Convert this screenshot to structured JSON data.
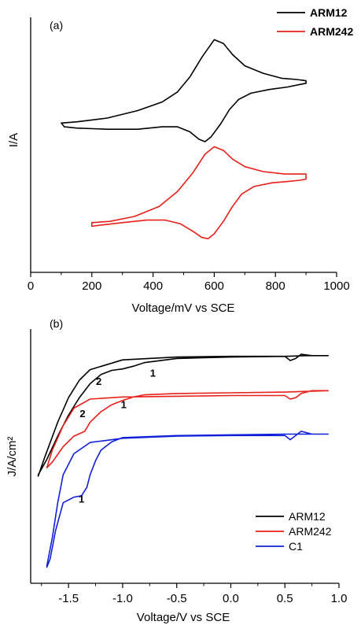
{
  "chart_data": [
    {
      "type": "line",
      "panel_label": "(a)",
      "xlabel": "Voltage/mV vs SCE",
      "ylabel": "I/A",
      "xlim": [
        0,
        1000
      ],
      "xticks": [
        "0",
        "200",
        "400",
        "600",
        "800",
        "1000"
      ],
      "legend": {
        "placement": "top-right",
        "style": "bold"
      },
      "series": [
        {
          "name": "ARM12",
          "color": "#000000",
          "x": [
            100,
            150,
            250,
            350,
            430,
            480,
            520,
            560,
            600,
            630,
            660,
            700,
            760,
            820,
            870,
            900,
            900,
            880,
            840,
            780,
            720,
            680,
            650,
            620,
            590,
            570,
            550,
            520,
            480,
            430,
            350,
            250,
            150,
            110,
            100
          ],
          "y": [
            0.45,
            0.46,
            0.49,
            0.55,
            0.62,
            0.7,
            0.82,
            0.98,
            1.12,
            1.09,
            1.0,
            0.91,
            0.85,
            0.81,
            0.8,
            0.79,
            0.77,
            0.76,
            0.74,
            0.72,
            0.69,
            0.64,
            0.56,
            0.44,
            0.34,
            0.3,
            0.32,
            0.38,
            0.42,
            0.42,
            0.4,
            0.4,
            0.41,
            0.42,
            0.45
          ]
        },
        {
          "name": "ARM242",
          "color": "#e8201a",
          "x": [
            200,
            260,
            340,
            420,
            480,
            530,
            570,
            600,
            630,
            660,
            700,
            760,
            830,
            880,
            900,
            900,
            880,
            840,
            790,
            730,
            690,
            660,
            630,
            600,
            580,
            560,
            530,
            490,
            440,
            380,
            300,
            230,
            200,
            200
          ],
          "y": [
            -0.35,
            -0.34,
            -0.3,
            -0.22,
            -0.1,
            0.05,
            0.2,
            0.26,
            0.23,
            0.16,
            0.1,
            0.06,
            0.04,
            0.04,
            0.04,
            0.0,
            -0.01,
            -0.02,
            -0.03,
            -0.06,
            -0.12,
            -0.22,
            -0.34,
            -0.44,
            -0.48,
            -0.47,
            -0.42,
            -0.36,
            -0.33,
            -0.33,
            -0.35,
            -0.37,
            -0.38,
            -0.35
          ]
        }
      ]
    },
    {
      "type": "line",
      "panel_label": "(b)",
      "xlabel": "Voltage/V vs SCE",
      "ylabel": "J/A/cm²",
      "xlim": [
        -1.85,
        1.0
      ],
      "xticks": [
        "-1.5",
        "-1.0",
        "-0.5",
        "0.0",
        "0.5",
        "1.0"
      ],
      "legend": {
        "placement": "bottom-right",
        "style": "normal"
      },
      "annotations": [
        {
          "text": "1",
          "x": -0.72,
          "y": 0.6
        },
        {
          "text": "2",
          "x": -1.22,
          "y": 0.48
        },
        {
          "text": "1",
          "x": -0.99,
          "y": 0.15
        },
        {
          "text": "2",
          "x": -1.37,
          "y": 0.02
        },
        {
          "text": "1",
          "x": -1.38,
          "y": -1.2
        }
      ],
      "series": [
        {
          "name": "ARM12",
          "color": "#000000",
          "x": [
            0.9,
            0.7,
            0.5,
            0.0,
            -0.5,
            -0.8,
            -0.9,
            -1.0,
            -1.1,
            -1.2,
            -1.3,
            -1.4,
            -1.5,
            -1.6,
            -1.7,
            -1.78,
            -1.78,
            -1.72,
            -1.6,
            -1.5,
            -1.4,
            -1.3,
            -1.0,
            -0.5,
            0.0,
            0.5,
            0.55,
            0.6,
            0.65,
            0.75,
            0.9
          ],
          "y": [
            0.9,
            0.9,
            0.89,
            0.88,
            0.86,
            0.8,
            0.75,
            0.71,
            0.69,
            0.63,
            0.5,
            0.3,
            0.05,
            -0.25,
            -0.58,
            -0.8,
            -0.82,
            -0.55,
            -0.05,
            0.3,
            0.55,
            0.7,
            0.84,
            0.88,
            0.89,
            0.89,
            0.83,
            0.86,
            0.92,
            0.9,
            0.9
          ]
        },
        {
          "name": "ARM242",
          "color": "#e8201a",
          "x": [
            0.9,
            0.7,
            0.5,
            0.0,
            -0.5,
            -0.8,
            -0.9,
            -1.0,
            -1.1,
            -1.2,
            -1.3,
            -1.35,
            -1.45,
            -1.55,
            -1.65,
            -1.7,
            -1.7,
            -1.65,
            -1.55,
            -1.45,
            -1.3,
            -1.0,
            -0.5,
            0.0,
            0.5,
            0.55,
            0.6,
            0.65,
            0.75,
            0.9
          ],
          "y": [
            0.4,
            0.39,
            0.38,
            0.37,
            0.36,
            0.34,
            0.31,
            0.26,
            0.2,
            0.1,
            -0.05,
            -0.18,
            -0.25,
            -0.4,
            -0.62,
            -0.7,
            -0.7,
            -0.45,
            -0.1,
            0.15,
            0.28,
            0.31,
            0.32,
            0.33,
            0.33,
            0.28,
            0.3,
            0.36,
            0.4,
            0.4
          ]
        },
        {
          "name": "C1",
          "color": "#1020d8",
          "x": [
            0.9,
            0.7,
            0.5,
            0.0,
            -0.5,
            -1.0,
            -1.1,
            -1.2,
            -1.25,
            -1.3,
            -1.33,
            -1.38,
            -1.45,
            -1.55,
            -1.62,
            -1.67,
            -1.7,
            -1.7,
            -1.65,
            -1.6,
            -1.55,
            -1.45,
            -1.3,
            -1.0,
            -0.5,
            0.0,
            0.5,
            0.55,
            0.6,
            0.65,
            0.75,
            0.9
          ],
          "y": [
            -0.22,
            -0.22,
            -0.22,
            -0.23,
            -0.24,
            -0.27,
            -0.33,
            -0.45,
            -0.6,
            -0.8,
            -0.98,
            -1.1,
            -1.12,
            -1.2,
            -1.6,
            -2.0,
            -2.12,
            -2.1,
            -1.7,
            -1.2,
            -0.8,
            -0.5,
            -0.34,
            -0.28,
            -0.25,
            -0.24,
            -0.24,
            -0.3,
            -0.24,
            -0.18,
            -0.22,
            -0.22
          ]
        }
      ]
    }
  ]
}
